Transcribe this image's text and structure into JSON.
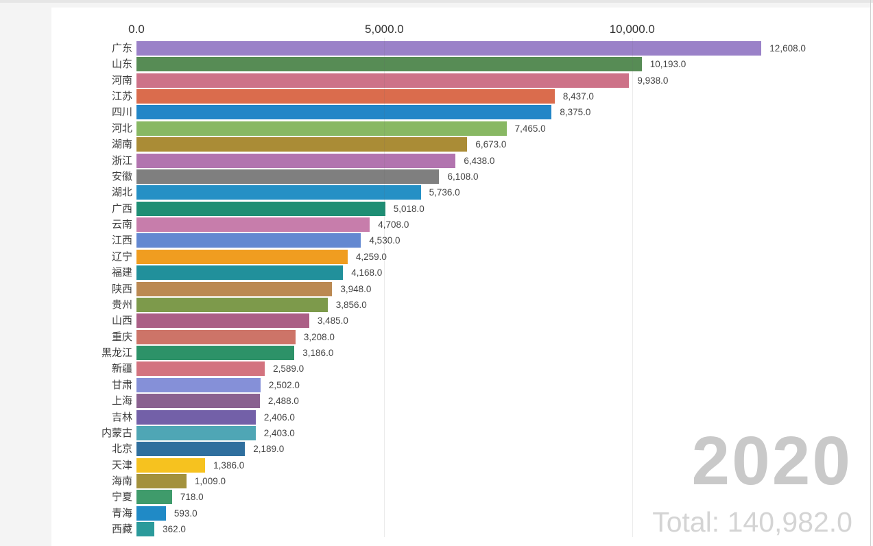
{
  "page": {
    "background": "#f4f4f4",
    "panel_background": "#ffffff"
  },
  "year_overlay": {
    "year": "2020",
    "year_color": "#c9c9c9",
    "total_text": "Total: 140,982.0",
    "total_color": "#d4d4d4"
  },
  "chart_data": {
    "type": "bar",
    "orientation": "horizontal",
    "title": "",
    "xlabel": "",
    "ylabel": "",
    "grid": true,
    "axis_position": "top",
    "xlim": [
      0,
      14860
    ],
    "x_ticks": [
      0,
      5000,
      10000
    ],
    "x_tick_labels": [
      "0.0",
      "5,000.0",
      "10,000.0"
    ],
    "categories": [
      "广东",
      "山东",
      "河南",
      "江苏",
      "四川",
      "河北",
      "湖南",
      "浙江",
      "安徽",
      "湖北",
      "广西",
      "云南",
      "江西",
      "辽宁",
      "福建",
      "陕西",
      "贵州",
      "山西",
      "重庆",
      "黑龙江",
      "新疆",
      "甘肃",
      "上海",
      "吉林",
      "内蒙古",
      "北京",
      "天津",
      "海南",
      "宁夏",
      "青海",
      "西藏"
    ],
    "values": [
      12608,
      10193,
      9938,
      8437,
      8375,
      7465,
      6673,
      6438,
      6108,
      5736,
      5018,
      4708,
      4530,
      4259,
      4168,
      3948,
      3856,
      3485,
      3208,
      3186,
      2589,
      2502,
      2488,
      2406,
      2403,
      2189,
      1386,
      1009,
      718,
      593,
      362
    ],
    "value_labels": [
      "12,608.0",
      "10,193.0",
      "9,938.0",
      "8,437.0",
      "8,375.0",
      "7,465.0",
      "6,673.0",
      "6,438.0",
      "6,108.0",
      "5,736.0",
      "5,018.0",
      "4,708.0",
      "4,530.0",
      "4,259.0",
      "4,168.0",
      "3,948.0",
      "3,856.0",
      "3,485.0",
      "3,208.0",
      "3,186.0",
      "2,589.0",
      "2,502.0",
      "2,488.0",
      "2,406.0",
      "2,403.0",
      "2,189.0",
      "1,386.0",
      "1,009.0",
      "718.0",
      "593.0",
      "362.0"
    ],
    "bar_colors": [
      "#9a81c8",
      "#578c55",
      "#cd7288",
      "#da6c4d",
      "#2286c7",
      "#88b863",
      "#aa8c36",
      "#b274af",
      "#7f7f7f",
      "#2590c5",
      "#1e8e74",
      "#c77dab",
      "#6388d1",
      "#f09d20",
      "#21909b",
      "#bb8952",
      "#7d9a4b",
      "#ab5f86",
      "#cd7468",
      "#2d9268",
      "#d3737f",
      "#8590d8",
      "#8a6190",
      "#7360a8",
      "#4fa6b5",
      "#2f6f9e",
      "#f6c21f",
      "#a3913c",
      "#3f9b6b",
      "#208ac6",
      "#2b9a9b"
    ],
    "year": "2020",
    "total": 140982
  }
}
